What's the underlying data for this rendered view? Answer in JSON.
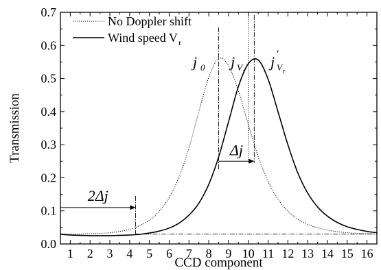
{
  "chart_data": {
    "type": "line",
    "xlabel": "CCD component",
    "ylabel": "Transmission",
    "xlim": [
      0.5,
      16.5
    ],
    "ylim": [
      0.0,
      0.7
    ],
    "xticks": [
      1,
      2,
      3,
      4,
      5,
      6,
      7,
      8,
      9,
      10,
      11,
      12,
      13,
      14,
      15,
      16
    ],
    "yticks": [
      "0.0",
      "0.1",
      "0.2",
      "0.3",
      "0.4",
      "0.5",
      "0.6",
      "0.7"
    ],
    "legend": {
      "placement": "top-left",
      "entries": [
        {
          "label": "No Doppler shift",
          "style": "dotted"
        },
        {
          "label": "Wind speed V",
          "subscript": "r",
          "style": "solid"
        }
      ]
    },
    "series": [
      {
        "name": "No Doppler shift",
        "style": "dotted",
        "x": [
          0.5,
          1,
          1.5,
          2,
          2.5,
          3,
          3.5,
          4,
          4.5,
          5,
          5.5,
          6,
          6.5,
          7,
          7.5,
          8,
          8.5,
          9,
          9.5,
          10,
          10.5,
          11,
          11.5,
          12,
          12.5,
          13,
          13.5,
          14,
          14.5,
          15,
          15.5,
          16,
          16.5
        ],
        "y": [
          0.031,
          0.03,
          0.03,
          0.031,
          0.032,
          0.034,
          0.038,
          0.044,
          0.055,
          0.072,
          0.099,
          0.141,
          0.203,
          0.29,
          0.4,
          0.503,
          0.56,
          0.539,
          0.462,
          0.361,
          0.264,
          0.189,
          0.135,
          0.099,
          0.075,
          0.059,
          0.049,
          0.042,
          0.037,
          0.034,
          0.032,
          0.031,
          0.03
        ]
      },
      {
        "name": "Wind speed V_r",
        "style": "solid",
        "x": [
          0.5,
          1,
          1.5,
          2,
          2.5,
          3,
          3.5,
          4,
          4.5,
          5,
          5.5,
          6,
          6.5,
          7,
          7.5,
          8,
          8.5,
          9,
          9.5,
          10,
          10.5,
          11,
          11.5,
          12,
          12.5,
          13,
          13.5,
          14,
          14.5,
          15,
          15.5,
          16,
          16.5
        ],
        "y": [
          0.029,
          0.027,
          0.026,
          0.025,
          0.025,
          0.025,
          0.026,
          0.027,
          0.029,
          0.033,
          0.039,
          0.048,
          0.063,
          0.087,
          0.123,
          0.18,
          0.263,
          0.369,
          0.476,
          0.545,
          0.556,
          0.498,
          0.4,
          0.3,
          0.215,
          0.154,
          0.112,
          0.084,
          0.065,
          0.052,
          0.044,
          0.038,
          0.034
        ]
      }
    ],
    "annotations": {
      "j0": {
        "symbol": "j",
        "sub": "0",
        "x": 8.5
      },
      "jvr": {
        "symbol": "j",
        "sub": "V",
        "subsub": "r",
        "x": 10.0
      },
      "jvr_prime": {
        "symbol": "j",
        "prime": "′",
        "sub": "V",
        "subsub": "r",
        "x": 10.3
      },
      "delta_j": {
        "text": "Δj",
        "from": 8.5,
        "to": 10.3,
        "y": 0.25
      },
      "two_delta_j": {
        "text": "2Δj",
        "from": 0.5,
        "to": 4.3,
        "y": 0.11
      },
      "baseline_y": 0.03
    }
  }
}
